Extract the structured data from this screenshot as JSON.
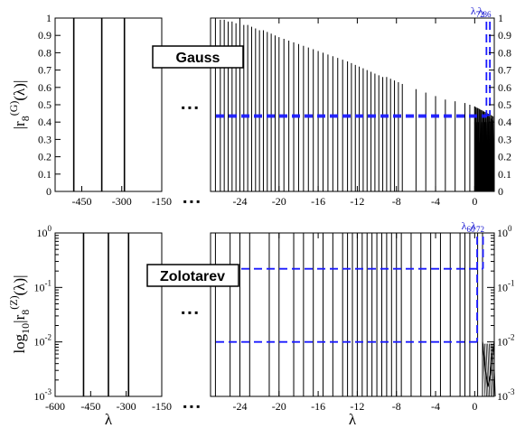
{
  "chart_data": [
    {
      "type": "line",
      "panel": "Gauss",
      "label": "Gauss",
      "ylabel": "|r8(G)(λ)|",
      "ylabel_parts": {
        "pre": "|r",
        "sub": "8",
        "sup": "(G)",
        "post": "(λ)|"
      },
      "xlabel": "",
      "left_xlim": [
        -550,
        -150
      ],
      "left_xticks": [
        "-450",
        "-300",
        "-150"
      ],
      "right_xlim": [
        -27,
        2
      ],
      "right_xticks": [
        "-24",
        "-20",
        "-16",
        "-12",
        "-8",
        "-4",
        "0"
      ],
      "ylim": [
        0,
        1
      ],
      "yticks": [
        "0",
        "0.1",
        "0.2",
        "0.3",
        "0.4",
        "0.5",
        "0.6",
        "0.7",
        "0.8",
        "0.9",
        "1"
      ],
      "right_yticks": [
        "0",
        "0.1",
        "0.2",
        "0.3",
        "0.4",
        "0.5",
        "0.6",
        "0.7",
        "0.8",
        "0.9",
        "1"
      ],
      "left_spikes": [
        {
          "x": -480,
          "y": 1.0
        },
        {
          "x": -375,
          "y": 1.0
        },
        {
          "x": -290,
          "y": 1.0
        }
      ],
      "right_spikes": [
        {
          "x": -26.5,
          "y": 1.0
        },
        {
          "x": -26.0,
          "y": 0.99
        },
        {
          "x": -25.6,
          "y": 0.99
        },
        {
          "x": -25.2,
          "y": 0.98
        },
        {
          "x": -24.8,
          "y": 0.98
        },
        {
          "x": -24.4,
          "y": 0.97
        },
        {
          "x": -24.0,
          "y": 0.97
        },
        {
          "x": -23.6,
          "y": 0.96
        },
        {
          "x": -23.2,
          "y": 0.96
        },
        {
          "x": -22.8,
          "y": 0.95
        },
        {
          "x": -22.4,
          "y": 0.94
        },
        {
          "x": -22.0,
          "y": 0.93
        },
        {
          "x": -21.6,
          "y": 0.93
        },
        {
          "x": -21.2,
          "y": 0.92
        },
        {
          "x": -20.8,
          "y": 0.91
        },
        {
          "x": -20.4,
          "y": 0.9
        },
        {
          "x": -20.0,
          "y": 0.89
        },
        {
          "x": -19.5,
          "y": 0.88
        },
        {
          "x": -19.0,
          "y": 0.87
        },
        {
          "x": -18.5,
          "y": 0.86
        },
        {
          "x": -18.0,
          "y": 0.85
        },
        {
          "x": -17.5,
          "y": 0.84
        },
        {
          "x": -17.0,
          "y": 0.83
        },
        {
          "x": -16.5,
          "y": 0.82
        },
        {
          "x": -16.0,
          "y": 0.81
        },
        {
          "x": -15.5,
          "y": 0.8
        },
        {
          "x": -15.0,
          "y": 0.79
        },
        {
          "x": -14.5,
          "y": 0.78
        },
        {
          "x": -14.0,
          "y": 0.77
        },
        {
          "x": -13.5,
          "y": 0.76
        },
        {
          "x": -13.0,
          "y": 0.75
        },
        {
          "x": -12.6,
          "y": 0.74
        },
        {
          "x": -12.2,
          "y": 0.73
        },
        {
          "x": -11.8,
          "y": 0.72
        },
        {
          "x": -11.4,
          "y": 0.71
        },
        {
          "x": -11.0,
          "y": 0.7
        },
        {
          "x": -10.6,
          "y": 0.69
        },
        {
          "x": -10.2,
          "y": 0.68
        },
        {
          "x": -9.8,
          "y": 0.67
        },
        {
          "x": -9.4,
          "y": 0.66
        },
        {
          "x": -9.0,
          "y": 0.66
        },
        {
          "x": -8.6,
          "y": 0.65
        },
        {
          "x": -8.2,
          "y": 0.64
        },
        {
          "x": -7.8,
          "y": 0.63
        },
        {
          "x": -7.4,
          "y": 0.62
        },
        {
          "x": -6.0,
          "y": 0.59
        },
        {
          "x": -5.0,
          "y": 0.57
        },
        {
          "x": -4.0,
          "y": 0.55
        },
        {
          "x": -3.0,
          "y": 0.53
        },
        {
          "x": -2.0,
          "y": 0.52
        },
        {
          "x": -1.0,
          "y": 0.51
        },
        {
          "x": -0.5,
          "y": 0.5
        },
        {
          "x": 0.0,
          "y": 0.49
        },
        {
          "x": 0.3,
          "y": 0.48
        },
        {
          "x": 0.6,
          "y": 0.47
        },
        {
          "x": 0.9,
          "y": 0.46
        },
        {
          "x": 1.1,
          "y": 0.45
        },
        {
          "x": 1.3,
          "y": 0.44
        },
        {
          "x": 1.5,
          "y": 0.43
        },
        {
          "x": 1.7,
          "y": 0.42
        },
        {
          "x": 1.85,
          "y": 0.41
        }
      ],
      "dense_region": {
        "x_start": 0.0,
        "x_end": 2.0,
        "y_top": 0.49,
        "y_bottom": 0.1
      },
      "reference_levels": [
        0.44,
        0.43
      ],
      "annotations": [
        {
          "text": "λ72",
          "base": "λ",
          "sub": "72",
          "x": 1.2
        },
        {
          "text": "λ86",
          "base": "λ",
          "sub": "86",
          "x": 1.55
        }
      ]
    },
    {
      "type": "line",
      "panel": "Zolotarev",
      "label": "Zolotarev",
      "ylabel": "log10|r8(Z)(λ)|",
      "ylabel_parts": {
        "pre": "log",
        "sub1": "10",
        "mid": "|r",
        "sub": "8",
        "sup": "(Z)",
        "post": "(λ)|"
      },
      "xlabel": "λ",
      "yscale": "log",
      "left_xlim": [
        -600,
        -150
      ],
      "left_xticks": [
        "-600",
        "-450",
        "-300",
        "-150"
      ],
      "right_xlim": [
        -27,
        2
      ],
      "right_xticks": [
        "-24",
        "-20",
        "-16",
        "-12",
        "-8",
        "-4",
        "0"
      ],
      "ylim": [
        0.001,
        1
      ],
      "yticks": [
        {
          "base": "10",
          "exp": "0",
          "value": 1
        },
        {
          "base": "10",
          "exp": "-1",
          "value": 0.1
        },
        {
          "base": "10",
          "exp": "-2",
          "value": 0.01
        },
        {
          "base": "10",
          "exp": "-3",
          "value": 0.001
        }
      ],
      "left_spikes": [
        {
          "x": -480,
          "y": 1.0
        },
        {
          "x": -375,
          "y": 1.0
        },
        {
          "x": -290,
          "y": 1.0
        }
      ],
      "right_spikes": [
        {
          "x": -26.5,
          "y": 1.0
        },
        {
          "x": -25.0,
          "y": 1.0
        },
        {
          "x": -24.0,
          "y": 1.0
        },
        {
          "x": -23.0,
          "y": 1.0
        },
        {
          "x": -21.0,
          "y": 1.0
        },
        {
          "x": -20.0,
          "y": 1.0
        },
        {
          "x": -18.5,
          "y": 1.0
        },
        {
          "x": -17.5,
          "y": 1.0
        },
        {
          "x": -16.5,
          "y": 1.0
        },
        {
          "x": -15.5,
          "y": 1.0
        },
        {
          "x": -14.5,
          "y": 1.0
        },
        {
          "x": -13.5,
          "y": 1.0
        },
        {
          "x": -13.0,
          "y": 1.0
        },
        {
          "x": -12.5,
          "y": 1.0
        },
        {
          "x": -12.0,
          "y": 1.0
        },
        {
          "x": -11.5,
          "y": 1.0
        },
        {
          "x": -11.0,
          "y": 1.0
        },
        {
          "x": -10.5,
          "y": 1.0
        },
        {
          "x": -10.0,
          "y": 1.0
        },
        {
          "x": -9.5,
          "y": 1.0
        },
        {
          "x": -9.0,
          "y": 1.0
        },
        {
          "x": -8.5,
          "y": 1.0
        },
        {
          "x": -8.0,
          "y": 1.0
        },
        {
          "x": -7.5,
          "y": 1.0
        },
        {
          "x": -6.5,
          "y": 1.0
        },
        {
          "x": -5.5,
          "y": 1.0
        },
        {
          "x": -4.5,
          "y": 1.0
        },
        {
          "x": -3.5,
          "y": 1.0
        },
        {
          "x": -2.5,
          "y": 1.0
        },
        {
          "x": -1.5,
          "y": 1.0
        },
        {
          "x": -1.0,
          "y": 1.0
        },
        {
          "x": -0.5,
          "y": 1.0
        },
        {
          "x": 0.3,
          "y": 1.0
        },
        {
          "x": 0.8,
          "y": 1.0
        }
      ],
      "valley_curve": [
        {
          "x": 0.8,
          "y": 0.01
        },
        {
          "x": 1.1,
          "y": 0.003
        },
        {
          "x": 1.35,
          "y": 0.0015
        },
        {
          "x": 1.6,
          "y": 0.0025
        },
        {
          "x": 1.8,
          "y": 0.006
        },
        {
          "x": 2.0,
          "y": 0.01
        }
      ],
      "reference_levels": [
        0.22,
        0.01
      ],
      "annotations": [
        {
          "text": "λ60",
          "base": "λ",
          "sub": "60",
          "x": 0.25
        },
        {
          "text": "λ72",
          "base": "λ",
          "sub": "72",
          "x": 0.85
        }
      ]
    }
  ],
  "colors": {
    "axes": "#000000",
    "curve": "#000000",
    "reference": "#1a1aff",
    "annotation": "#1010d0"
  },
  "ellipsis": "▪ ▪ ▪"
}
